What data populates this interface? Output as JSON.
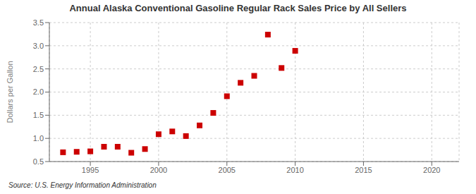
{
  "chart_data": {
    "type": "scatter",
    "title": "Annual Alaska Conventional Gasoline Regular Rack Sales Price by All Sellers",
    "ylabel": "Dollars per Gallon",
    "annotations": [
      "Source: U.S. Energy Information Administration"
    ],
    "x": [
      1993,
      1994,
      1995,
      1996,
      1997,
      1998,
      1999,
      2000,
      2001,
      2002,
      2003,
      2004,
      2005,
      2006,
      2007,
      2008,
      2009,
      2010
    ],
    "values": [
      0.7,
      0.71,
      0.72,
      0.82,
      0.82,
      0.69,
      0.77,
      1.09,
      1.15,
      1.05,
      1.28,
      1.55,
      1.91,
      2.2,
      2.35,
      3.24,
      2.52,
      2.89
    ],
    "color": "#cc0000",
    "marker": "square",
    "xlim": [
      1992,
      2022
    ],
    "ylim": [
      0.5,
      3.5
    ],
    "xticks": [
      1995,
      2000,
      2005,
      2010,
      2015,
      2020
    ],
    "yticks": [
      0.5,
      {
        "value": 1,
        "label": "1.0"
      },
      1.5,
      {
        "value": 2,
        "label": "2.0"
      },
      2.5,
      {
        "value": 3,
        "label": "3.0"
      },
      3.5
    ],
    "grid": true
  }
}
